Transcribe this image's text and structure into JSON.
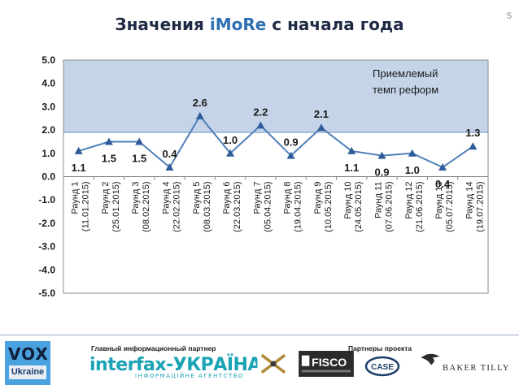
{
  "slide": {
    "page_number": "5",
    "title_prefix": "Значения ",
    "title_accent": "iMoRe",
    "title_suffix": " с начала года",
    "colors": {
      "title": "#1f2a44",
      "accent": "#2f6fb3",
      "band": "#c5d4e8",
      "line": "#4f7fb8"
    }
  },
  "chart_data": {
    "type": "line",
    "title": "",
    "xlabel": "",
    "ylabel": "",
    "ylim": [
      -5,
      5
    ],
    "yticks": [
      "5.0",
      "4.0",
      "3.0",
      "2.0",
      "1.0",
      "0.0",
      "-1.0",
      "-2.0",
      "-3.0",
      "-4.0",
      "-5.0"
    ],
    "band": {
      "from": 1.9,
      "to": 5.0,
      "label_line1": "Приемлемый",
      "label_line2": "темп реформ"
    },
    "categories": [
      "Раунд 1\n(11.01.2015)",
      "Раунд 2\n(25.01.2015)",
      "Раунд 3\n(08.02.2015)",
      "Раунд 4\n(22.02.2015)",
      "Раунд 5\n(08.03.2015)",
      "Раунд 6\n(22.03.2015)",
      "Раунд 7\n(05.04.2015)",
      "Раунд 8\n(19.04.2015)",
      "Раунд 9\n(10.05.2015)",
      "Раунд 10\n(24.05.2015)",
      "Раунд 11\n(07.06.2015)",
      "Раунд 12\n(21.06.2015)",
      "Раунд 13\n(05.07.2015)",
      "Раунд 14\n(19.07.2015)"
    ],
    "values": [
      1.1,
      1.5,
      1.5,
      0.4,
      2.6,
      1.0,
      2.2,
      0.9,
      2.1,
      1.1,
      0.9,
      1.0,
      0.4,
      1.3
    ],
    "labels": [
      "1.1",
      "1.5",
      "1.5",
      "0.4",
      "2.6",
      "1.0",
      "2.2",
      "0.9",
      "2.1",
      "1.1",
      "0.9",
      "1.0",
      "0.4",
      "1.3"
    ],
    "label_positions": [
      "below",
      "below",
      "below",
      "above",
      "above",
      "above",
      "above",
      "above",
      "above",
      "below",
      "below",
      "below",
      "below",
      "above"
    ],
    "marker": "triangle",
    "legend": "none"
  },
  "footer": {
    "main_partner_label": "Главный информационный партнер",
    "partners_label": "Партнеры проекта",
    "vox_top": "VOX",
    "vox_bottom": "Ukraine",
    "interfax_main": "interfax-УКРАЇНА",
    "interfax_sub": "ІНФОРМАЦІЙНЕ АГЕНТСТВО",
    "fisco_text": "FISCO",
    "case_text": "CASE",
    "baker_text": "BAKER TILLY"
  }
}
